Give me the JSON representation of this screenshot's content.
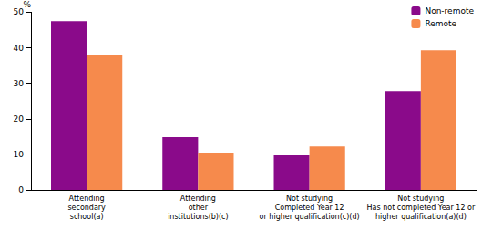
{
  "chart_data": {
    "type": "bar",
    "categories": [
      "Attending\nsecondary\nschool(a)",
      "Attending\nother\ninstitutions(b)(c)",
      "Not studying\nCompleted Year 12\nor higher qualification(c)(d)",
      "Not studying\nHas not completed Year 12 or\nhigher qualification(a)(d)"
    ],
    "series": [
      {
        "name": "Non-remote",
        "color": "#8a0a8a",
        "values": [
          47.5,
          14.8,
          9.8,
          27.8
        ]
      },
      {
        "name": "Remote",
        "color": "#f68a4c",
        "values": [
          38.0,
          10.5,
          12.2,
          39.3
        ]
      }
    ],
    "ylabel": "%",
    "ylim": [
      0,
      50
    ],
    "yticks": [
      0,
      10,
      20,
      30,
      40,
      50
    ],
    "grid": false,
    "legend": "top-right"
  }
}
